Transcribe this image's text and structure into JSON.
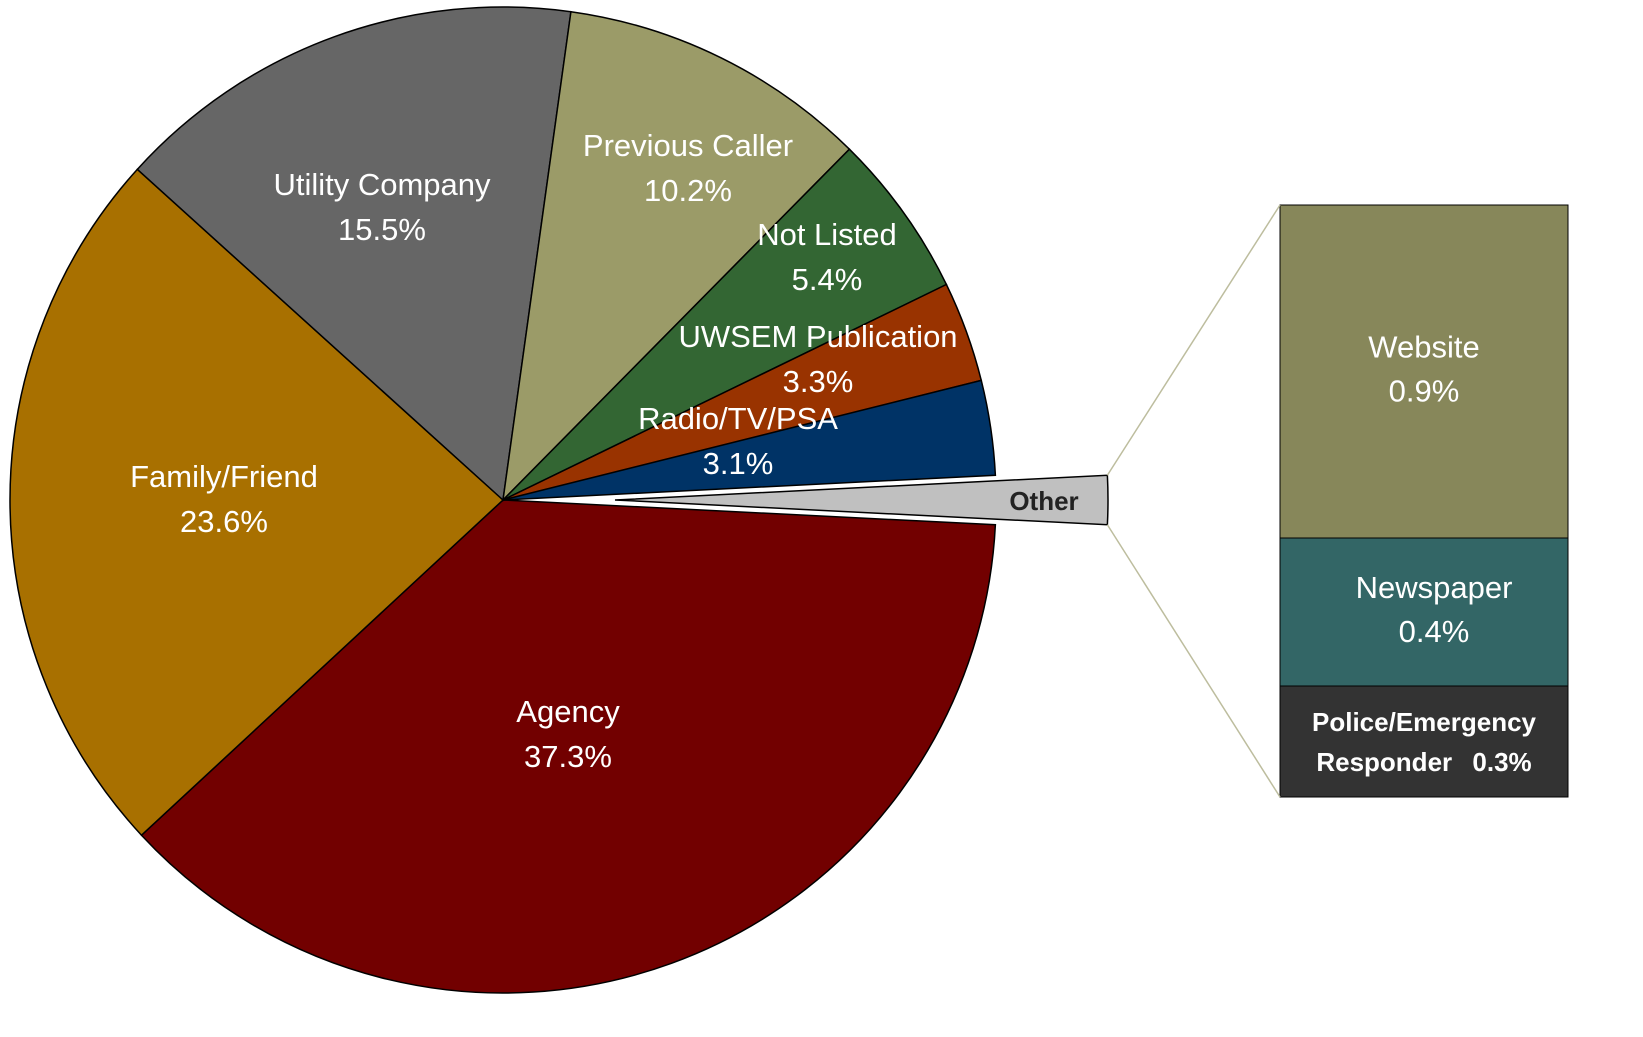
{
  "chart_data": {
    "type": "pie-of-bar",
    "categories": [
      "Agency",
      "Family/Friend",
      "Utility Company",
      "Previous Caller",
      "Not Listed",
      "UWSEM Publication",
      "Radio/TV/PSA",
      "Other"
    ],
    "values": [
      37.3,
      23.6,
      15.5,
      10.2,
      5.4,
      3.3,
      3.1,
      null
    ],
    "value_labels": [
      "37.3%",
      "23.6%",
      "15.5%",
      "10.2%",
      "5.4%",
      "3.3%",
      "3.1%",
      null
    ],
    "colors": [
      "#720000",
      "#a87000",
      "#666666",
      "#9b9b68",
      "#336633",
      "#993300",
      "#003366",
      "#c0c0c0"
    ],
    "breakdown": {
      "categories": [
        "Website",
        "Newspaper",
        "Police/Emergency Responder"
      ],
      "values": [
        0.9,
        0.4,
        0.3
      ],
      "value_labels": [
        "0.9%",
        "0.4%",
        "0.3%"
      ],
      "colors": [
        "#87875a",
        "#336666",
        "#333333"
      ]
    }
  }
}
